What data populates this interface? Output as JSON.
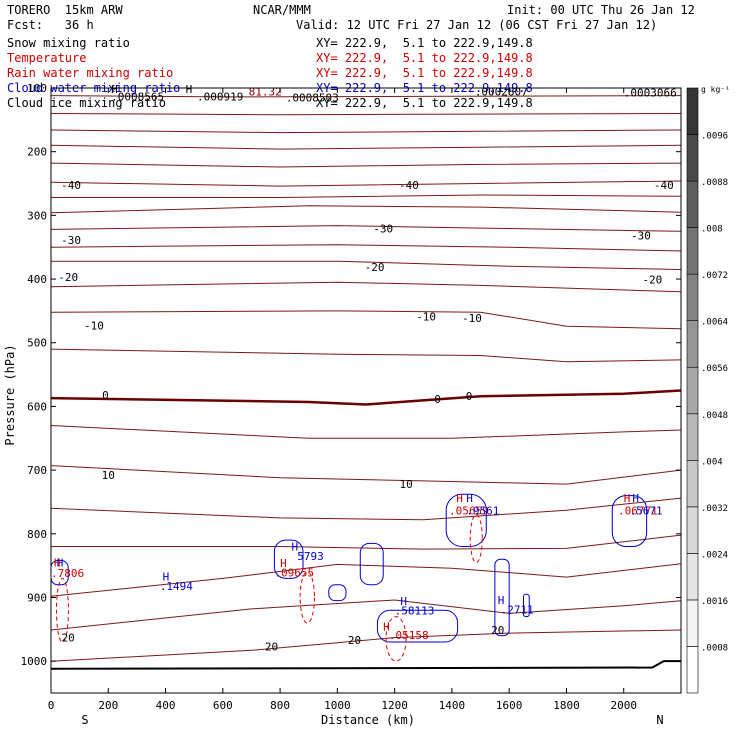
{
  "header": {
    "model": "TORERO  15km ARW",
    "center": "NCAR/MMM",
    "init": "Init: 00 UTC Thu 26 Jan 12",
    "fcst": "Fcst:   36 h",
    "valid": "Valid: 12 UTC Fri 27 Jan 12 (06 CST Fri 27 Jan 12)"
  },
  "fields": [
    {
      "label": "Snow mixing ratio",
      "xy": "XY= 222.9,  5.1 to 222.9,149.8",
      "color": "#000000"
    },
    {
      "label": "Temperature",
      "xy": "XY= 222.9,  5.1 to 222.9,149.8",
      "color": "#cc0000"
    },
    {
      "label": "Rain water mixing ratio",
      "xy": "XY= 222.9,  5.1 to 222.9,149.8",
      "color": "#cc0000"
    },
    {
      "label": "Cloud water mixing ratio",
      "xy": "XY= 222.9,  5.1 to 222.9,149.8",
      "color": "#0000cc"
    },
    {
      "label": "Cloud ice mixing ratio",
      "xy": "XY= 222.9,  5.1 to 222.9,149.8",
      "color": "#000000"
    }
  ],
  "chart_data": {
    "type": "cross-section contour",
    "xlabel": "Distance (km)",
    "ylabel": "Pressure (hPa)",
    "xlim": [
      0,
      2200
    ],
    "ylim": [
      1050,
      100
    ],
    "xticks": [
      0,
      200,
      400,
      600,
      800,
      1000,
      1200,
      1400,
      1600,
      1800,
      2000
    ],
    "yticks": [
      100,
      200,
      300,
      400,
      500,
      600,
      700,
      800,
      900,
      1000
    ],
    "end_labels": {
      "left": "S",
      "right": "N"
    },
    "colorbar": {
      "units": "g kg⁻¹",
      "levels": [
        ".0008",
        ".0016",
        ".0024",
        ".0032",
        ".004",
        ".0048",
        ".0056",
        ".0064",
        ".0072",
        ".008",
        ".0088",
        ".0096"
      ],
      "colors": [
        "#ffffff",
        "#f4f4f4",
        "#e6e6e6",
        "#d8d8d8",
        "#c8c8c8",
        "#b8b8b8",
        "#a8a8a8",
        "#969696",
        "#848484",
        "#727272",
        "#5e5e5e",
        "#4a4a4a",
        "#363636"
      ]
    },
    "temperature_contours": [
      {
        "label": "-40",
        "label_positions": [
          [
            70,
            252
          ],
          [
            1250,
            252
          ],
          [
            2140,
            252
          ]
        ]
      },
      {
        "label": "-30",
        "label_positions": [
          [
            70,
            339
          ],
          [
            1160,
            321
          ],
          [
            2060,
            332
          ]
        ]
      },
      {
        "label": "-20",
        "label_positions": [
          [
            60,
            397
          ],
          [
            1130,
            381
          ],
          [
            2100,
            401
          ]
        ]
      },
      {
        "label": "-10",
        "label_positions": [
          [
            150,
            473
          ],
          [
            1310,
            459
          ],
          [
            1470,
            461
          ]
        ]
      },
      {
        "label": "0",
        "label_positions": [
          [
            190,
            582
          ],
          [
            1350,
            588
          ],
          [
            1460,
            584
          ]
        ]
      },
      {
        "label": "10",
        "label_positions": [
          [
            200,
            708
          ],
          [
            1240,
            722
          ]
        ]
      },
      {
        "label": "20",
        "label_positions": [
          [
            60,
            963
          ],
          [
            770,
            977
          ],
          [
            1060,
            967
          ],
          [
            1560,
            951
          ]
        ]
      }
    ],
    "max_labels": [
      {
        "text": "H",
        "color": "#000000",
        "x": 210,
        "y": 108
      },
      {
        "text": "H",
        "color": "#000000",
        "x": 470,
        "y": 108
      },
      {
        "text": "81.32",
        "color": "#8b0000",
        "x": 690,
        "y": 112
      },
      {
        "text": ".0008565",
        "color": "#000000",
        "x": 210,
        "y": 120
      },
      {
        "text": ".000919",
        "color": "#000000",
        "x": 510,
        "y": 120
      },
      {
        "text": ".0008503",
        "color": "#000000",
        "x": 820,
        "y": 121
      },
      {
        "text": ".0003066",
        "color": "#000000",
        "x": 2000,
        "y": 113
      },
      {
        "text": ".0002807",
        "color": "#000000",
        "x": 1480,
        "y": 112
      },
      {
        "text": "H",
        "color": "#cc0000",
        "x": 1415,
        "y": 750
      },
      {
        "text": "H",
        "color": "#0000cc",
        "x": 1450,
        "y": 750
      },
      {
        "text": ".05659",
        "color": "#cc0000",
        "x": 1390,
        "y": 770
      },
      {
        "text": ".9561",
        "color": "#0000cc",
        "x": 1450,
        "y": 770
      },
      {
        "text": "H",
        "color": "#cc0000",
        "x": 2000,
        "y": 750
      },
      {
        "text": "H",
        "color": "#0000cc",
        "x": 2030,
        "y": 750
      },
      {
        "text": ".06771",
        "color": "#cc0000",
        "x": 1980,
        "y": 770
      },
      {
        "text": ".5671",
        "color": "#0000cc",
        "x": 2020,
        "y": 770
      },
      {
        "text": "H",
        "color": "#0000cc",
        "x": 840,
        "y": 826
      },
      {
        "text": "5793",
        "color": "#0000cc",
        "x": 860,
        "y": 841
      },
      {
        "text": "H",
        "color": "#cc0000",
        "x": 800,
        "y": 852
      },
      {
        "text": ".09655",
        "color": "#cc0000",
        "x": 780,
        "y": 867
      },
      {
        "text": "H",
        "color": "#0000cc",
        "x": 20,
        "y": 851
      },
      {
        "text": "H",
        "color": "#cc0000",
        "x": 10,
        "y": 851
      },
      {
        "text": ".7806",
        "color": "#cc0000",
        "x": 0,
        "y": 868
      },
      {
        "text": "H",
        "color": "#0000cc",
        "x": 390,
        "y": 873
      },
      {
        "text": ".1494",
        "color": "#0000cc",
        "x": 380,
        "y": 888
      },
      {
        "text": "H",
        "color": "#0000cc",
        "x": 1220,
        "y": 912
      },
      {
        "text": ".58113",
        "color": "#0000cc",
        "x": 1200,
        "y": 927
      },
      {
        "text": "H",
        "color": "#cc0000",
        "x": 1160,
        "y": 952
      },
      {
        "text": ".05158",
        "color": "#cc0000",
        "x": 1180,
        "y": 965
      },
      {
        "text": "H",
        "color": "#0000cc",
        "x": 1560,
        "y": 910
      },
      {
        "text": ".2711",
        "color": "#0000cc",
        "x": 1570,
        "y": 925
      }
    ]
  }
}
